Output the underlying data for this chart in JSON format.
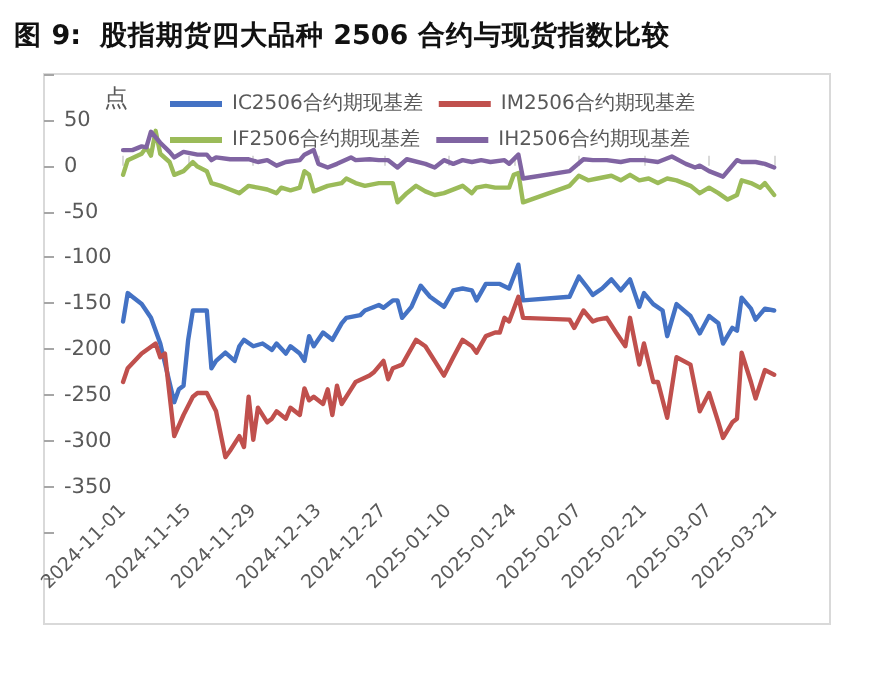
{
  "chart_data": {
    "type": "line",
    "title": "图 9:  股指期货四大品种 2506 合约与现货指数比较",
    "ylabel": "点",
    "xlim": [
      "2024-10-15",
      "2025-04-02"
    ],
    "xticks": [
      "2024-11-01",
      "2024-11-15",
      "2024-11-29",
      "2024-12-13",
      "2024-12-27",
      "2025-01-10",
      "2025-01-24",
      "2025-02-07",
      "2025-02-21",
      "2025-03-07",
      "2025-03-21"
    ],
    "ylim": [
      -500,
      100
    ],
    "yticks": [
      {
        "value": 100,
        "label": null
      },
      50,
      0,
      -50,
      -100,
      -150,
      -200,
      -250,
      -300,
      -350,
      {
        "value": -400,
        "label": null
      },
      {
        "value": -450,
        "label": null
      }
    ],
    "grid": false,
    "legend": "top",
    "marker": "none",
    "line_style": "solid",
    "series": [
      {
        "name": "IC2506合约期现基差",
        "color": "#4472c4",
        "x": [
          "2024-11-01",
          "2024-11-02",
          "2024-11-03",
          "2024-11-05",
          "2024-11-07",
          "2024-11-09",
          "2024-11-12",
          "2024-11-13",
          "2024-11-14",
          "2024-11-15",
          "2024-11-16",
          "2024-11-19",
          "2024-11-20",
          "2024-11-21",
          "2024-11-23",
          "2024-11-25",
          "2024-11-26",
          "2024-11-27",
          "2024-11-29",
          "2024-12-01",
          "2024-12-03",
          "2024-12-04",
          "2024-12-06",
          "2024-12-07",
          "2024-12-09",
          "2024-12-10",
          "2024-12-11",
          "2024-12-12",
          "2024-12-14",
          "2024-12-16",
          "2024-12-18",
          "2024-12-19",
          "2024-12-22",
          "2024-12-23",
          "2024-12-26",
          "2024-12-27",
          "2024-12-29",
          "2024-12-30",
          "2024-12-31",
          "2025-01-02",
          "2025-01-04",
          "2025-01-06",
          "2025-01-09",
          "2025-01-11",
          "2025-01-13",
          "2025-01-15",
          "2025-01-16",
          "2025-01-18",
          "2025-01-21",
          "2025-01-23",
          "2025-01-25",
          "2025-01-26",
          "2025-02-05",
          "2025-02-07",
          "2025-02-09",
          "2025-02-10",
          "2025-02-12",
          "2025-02-14",
          "2025-02-16",
          "2025-02-18",
          "2025-02-20",
          "2025-02-21",
          "2025-02-23",
          "2025-02-25",
          "2025-02-26",
          "2025-02-28",
          "2025-03-03",
          "2025-03-05",
          "2025-03-07",
          "2025-03-09",
          "2025-03-10",
          "2025-03-12",
          "2025-03-13",
          "2025-03-14",
          "2025-03-16",
          "2025-03-17",
          "2025-03-19",
          "2025-03-21"
        ],
        "values": [
          -170,
          -139,
          -143,
          -151,
          -166,
          -194,
          -258,
          -244,
          -240,
          -190,
          -158,
          -158,
          -221,
          -213,
          -204,
          -213,
          -197,
          -190,
          -197,
          -194,
          -201,
          -194,
          -205,
          -197,
          -205,
          -213,
          -186,
          -197,
          -182,
          -190,
          -172,
          -166,
          -163,
          -158,
          -152,
          -155,
          -147,
          -147,
          -166,
          -154,
          -131,
          -143,
          -154,
          -136,
          -134,
          -136,
          -147,
          -129,
          -129,
          -134,
          -108,
          -147,
          -143,
          -121,
          -134,
          -141,
          -134,
          -124,
          -136,
          -124,
          -154,
          -139,
          -151,
          -158,
          -186,
          -151,
          -164,
          -183,
          -164,
          -172,
          -194,
          -177,
          -180,
          -144,
          -156,
          -168,
          -156,
          -158
        ]
      },
      {
        "name": "IM2506合约期现基差",
        "color": "#c0504d",
        "x": [
          "2024-11-01",
          "2024-11-02",
          "2024-11-05",
          "2024-11-08",
          "2024-11-09",
          "2024-11-10",
          "2024-11-12",
          "2024-11-14",
          "2024-11-16",
          "2024-11-17",
          "2024-11-19",
          "2024-11-21",
          "2024-11-23",
          "2024-11-24",
          "2024-11-26",
          "2024-11-27",
          "2024-11-28",
          "2024-11-29",
          "2024-11-30",
          "2024-12-02",
          "2024-12-03",
          "2024-12-04",
          "2024-12-06",
          "2024-12-07",
          "2024-12-09",
          "2024-12-10",
          "2024-12-11",
          "2024-12-12",
          "2024-12-14",
          "2024-12-15",
          "2024-12-16",
          "2024-12-17",
          "2024-12-18",
          "2024-12-20",
          "2024-12-21",
          "2024-12-24",
          "2024-12-25",
          "2024-12-27",
          "2024-12-28",
          "2024-12-29",
          "2024-12-31",
          "2025-01-03",
          "2025-01-05",
          "2025-01-07",
          "2025-01-09",
          "2025-01-11",
          "2025-01-13",
          "2025-01-15",
          "2025-01-16",
          "2025-01-18",
          "2025-01-20",
          "2025-01-21",
          "2025-01-22",
          "2025-01-23",
          "2025-01-25",
          "2025-01-26",
          "2025-02-05",
          "2025-02-06",
          "2025-02-08",
          "2025-02-10",
          "2025-02-11",
          "2025-02-13",
          "2025-02-15",
          "2025-02-17",
          "2025-02-18",
          "2025-02-20",
          "2025-02-21",
          "2025-02-23",
          "2025-02-24",
          "2025-02-26",
          "2025-02-28",
          "2025-03-03",
          "2025-03-05",
          "2025-03-07",
          "2025-03-09",
          "2025-03-10",
          "2025-03-12",
          "2025-03-13",
          "2025-03-14",
          "2025-03-16",
          "2025-03-17",
          "2025-03-19",
          "2025-03-21"
        ],
        "values": [
          -236,
          -221,
          -205,
          -194,
          -209,
          -205,
          -295,
          -272,
          -252,
          -248,
          -248,
          -268,
          -318,
          -311,
          -295,
          -307,
          -252,
          -299,
          -264,
          -280,
          -276,
          -268,
          -276,
          -264,
          -272,
          -243,
          -256,
          -252,
          -260,
          -244,
          -272,
          -240,
          -260,
          -244,
          -236,
          -229,
          -225,
          -213,
          -233,
          -221,
          -217,
          -190,
          -197,
          -213,
          -229,
          -209,
          -190,
          -197,
          -204,
          -186,
          -182,
          -182,
          -166,
          -170,
          -143,
          -166,
          -168,
          -177,
          -158,
          -170,
          -168,
          -166,
          -182,
          -197,
          -166,
          -217,
          -194,
          -236,
          -236,
          -275,
          -209,
          -217,
          -268,
          -248,
          -280,
          -297,
          -280,
          -276,
          -204,
          -236,
          -254,
          -223,
          -228
        ]
      },
      {
        "name": "IF2506合约期现基差",
        "color": "#9bbb59",
        "x": [
          "2024-11-01",
          "2024-11-02",
          "2024-11-05",
          "2024-11-06",
          "2024-11-07",
          "2024-11-08",
          "2024-11-09",
          "2024-11-11",
          "2024-11-12",
          "2024-11-14",
          "2024-11-16",
          "2024-11-17",
          "2024-11-19",
          "2024-11-20",
          "2024-11-22",
          "2024-11-24",
          "2024-11-26",
          "2024-11-28",
          "2024-11-30",
          "2024-12-02",
          "2024-12-04",
          "2024-12-05",
          "2024-12-07",
          "2024-12-09",
          "2024-12-10",
          "2024-12-11",
          "2024-12-12",
          "2024-12-15",
          "2024-12-18",
          "2024-12-19",
          "2024-12-21",
          "2024-12-23",
          "2024-12-26",
          "2024-12-29",
          "2024-12-30",
          "2025-01-01",
          "2025-01-03",
          "2025-01-05",
          "2025-01-07",
          "2025-01-09",
          "2025-01-13",
          "2025-01-15",
          "2025-01-16",
          "2025-01-18",
          "2025-01-20",
          "2025-01-23",
          "2025-01-24",
          "2025-01-25",
          "2025-01-26",
          "2025-02-05",
          "2025-02-07",
          "2025-02-09",
          "2025-02-11",
          "2025-02-14",
          "2025-02-16",
          "2025-02-18",
          "2025-02-20",
          "2025-02-22",
          "2025-02-24",
          "2025-02-26",
          "2025-02-28",
          "2025-03-03",
          "2025-03-05",
          "2025-03-07",
          "2025-03-09",
          "2025-03-11",
          "2025-03-13",
          "2025-03-14",
          "2025-03-16",
          "2025-03-18",
          "2025-03-19",
          "2025-03-21"
        ],
        "values": [
          -10,
          6,
          13,
          20,
          11,
          38,
          13,
          4,
          -10,
          -6,
          4,
          -1,
          -6,
          -19,
          -22,
          -26,
          -30,
          -22,
          -24,
          -26,
          -30,
          -24,
          -27,
          -24,
          -6,
          -10,
          -28,
          -22,
          -19,
          -14,
          -19,
          -22,
          -19,
          -19,
          -40,
          -30,
          -22,
          -28,
          -32,
          -30,
          -22,
          -30,
          -24,
          -22,
          -24,
          -24,
          -10,
          -8,
          -40,
          -22,
          -11,
          -16,
          -14,
          -11,
          -16,
          -10,
          -16,
          -14,
          -19,
          -14,
          -16,
          -22,
          -30,
          -24,
          -30,
          -37,
          -32,
          -16,
          -19,
          -24,
          -19,
          -32
        ]
      },
      {
        "name": "IH2506合约期现基差",
        "color": "#8064a2",
        "x": [
          "2024-11-01",
          "2024-11-03",
          "2024-11-05",
          "2024-11-06",
          "2024-11-07",
          "2024-11-09",
          "2024-11-11",
          "2024-11-12",
          "2024-11-14",
          "2024-11-17",
          "2024-11-19",
          "2024-11-20",
          "2024-11-21",
          "2024-11-24",
          "2024-11-26",
          "2024-11-28",
          "2024-11-30",
          "2024-12-02",
          "2024-12-04",
          "2024-12-06",
          "2024-12-09",
          "2024-12-10",
          "2024-12-12",
          "2024-12-13",
          "2024-12-15",
          "2024-12-17",
          "2024-12-20",
          "2024-12-21",
          "2024-12-24",
          "2024-12-26",
          "2024-12-28",
          "2024-12-30",
          "2025-01-01",
          "2025-01-05",
          "2025-01-07",
          "2025-01-09",
          "2025-01-11",
          "2025-01-13",
          "2025-01-15",
          "2025-01-17",
          "2025-01-19",
          "2025-01-22",
          "2025-01-23",
          "2025-01-25",
          "2025-01-26",
          "2025-02-05",
          "2025-02-08",
          "2025-02-10",
          "2025-02-13",
          "2025-02-16",
          "2025-02-18",
          "2025-02-21",
          "2025-02-24",
          "2025-02-27",
          "2025-03-02",
          "2025-03-04",
          "2025-03-05",
          "2025-03-07",
          "2025-03-10",
          "2025-03-13",
          "2025-03-14",
          "2025-03-17",
          "2025-03-19",
          "2025-03-21"
        ],
        "values": [
          17,
          17,
          21,
          20,
          37,
          25,
          15,
          9,
          15,
          12,
          12,
          6,
          9,
          7,
          7,
          7,
          4,
          6,
          0,
          4,
          6,
          12,
          17,
          2,
          -2,
          2,
          9,
          6,
          7,
          6,
          6,
          -2,
          7,
          2,
          -2,
          6,
          2,
          6,
          4,
          6,
          4,
          6,
          2,
          12,
          -14,
          -6,
          7,
          6,
          6,
          4,
          6,
          6,
          4,
          10,
          2,
          -2,
          0,
          -6,
          -12,
          6,
          4,
          4,
          2,
          -2
        ]
      }
    ]
  }
}
